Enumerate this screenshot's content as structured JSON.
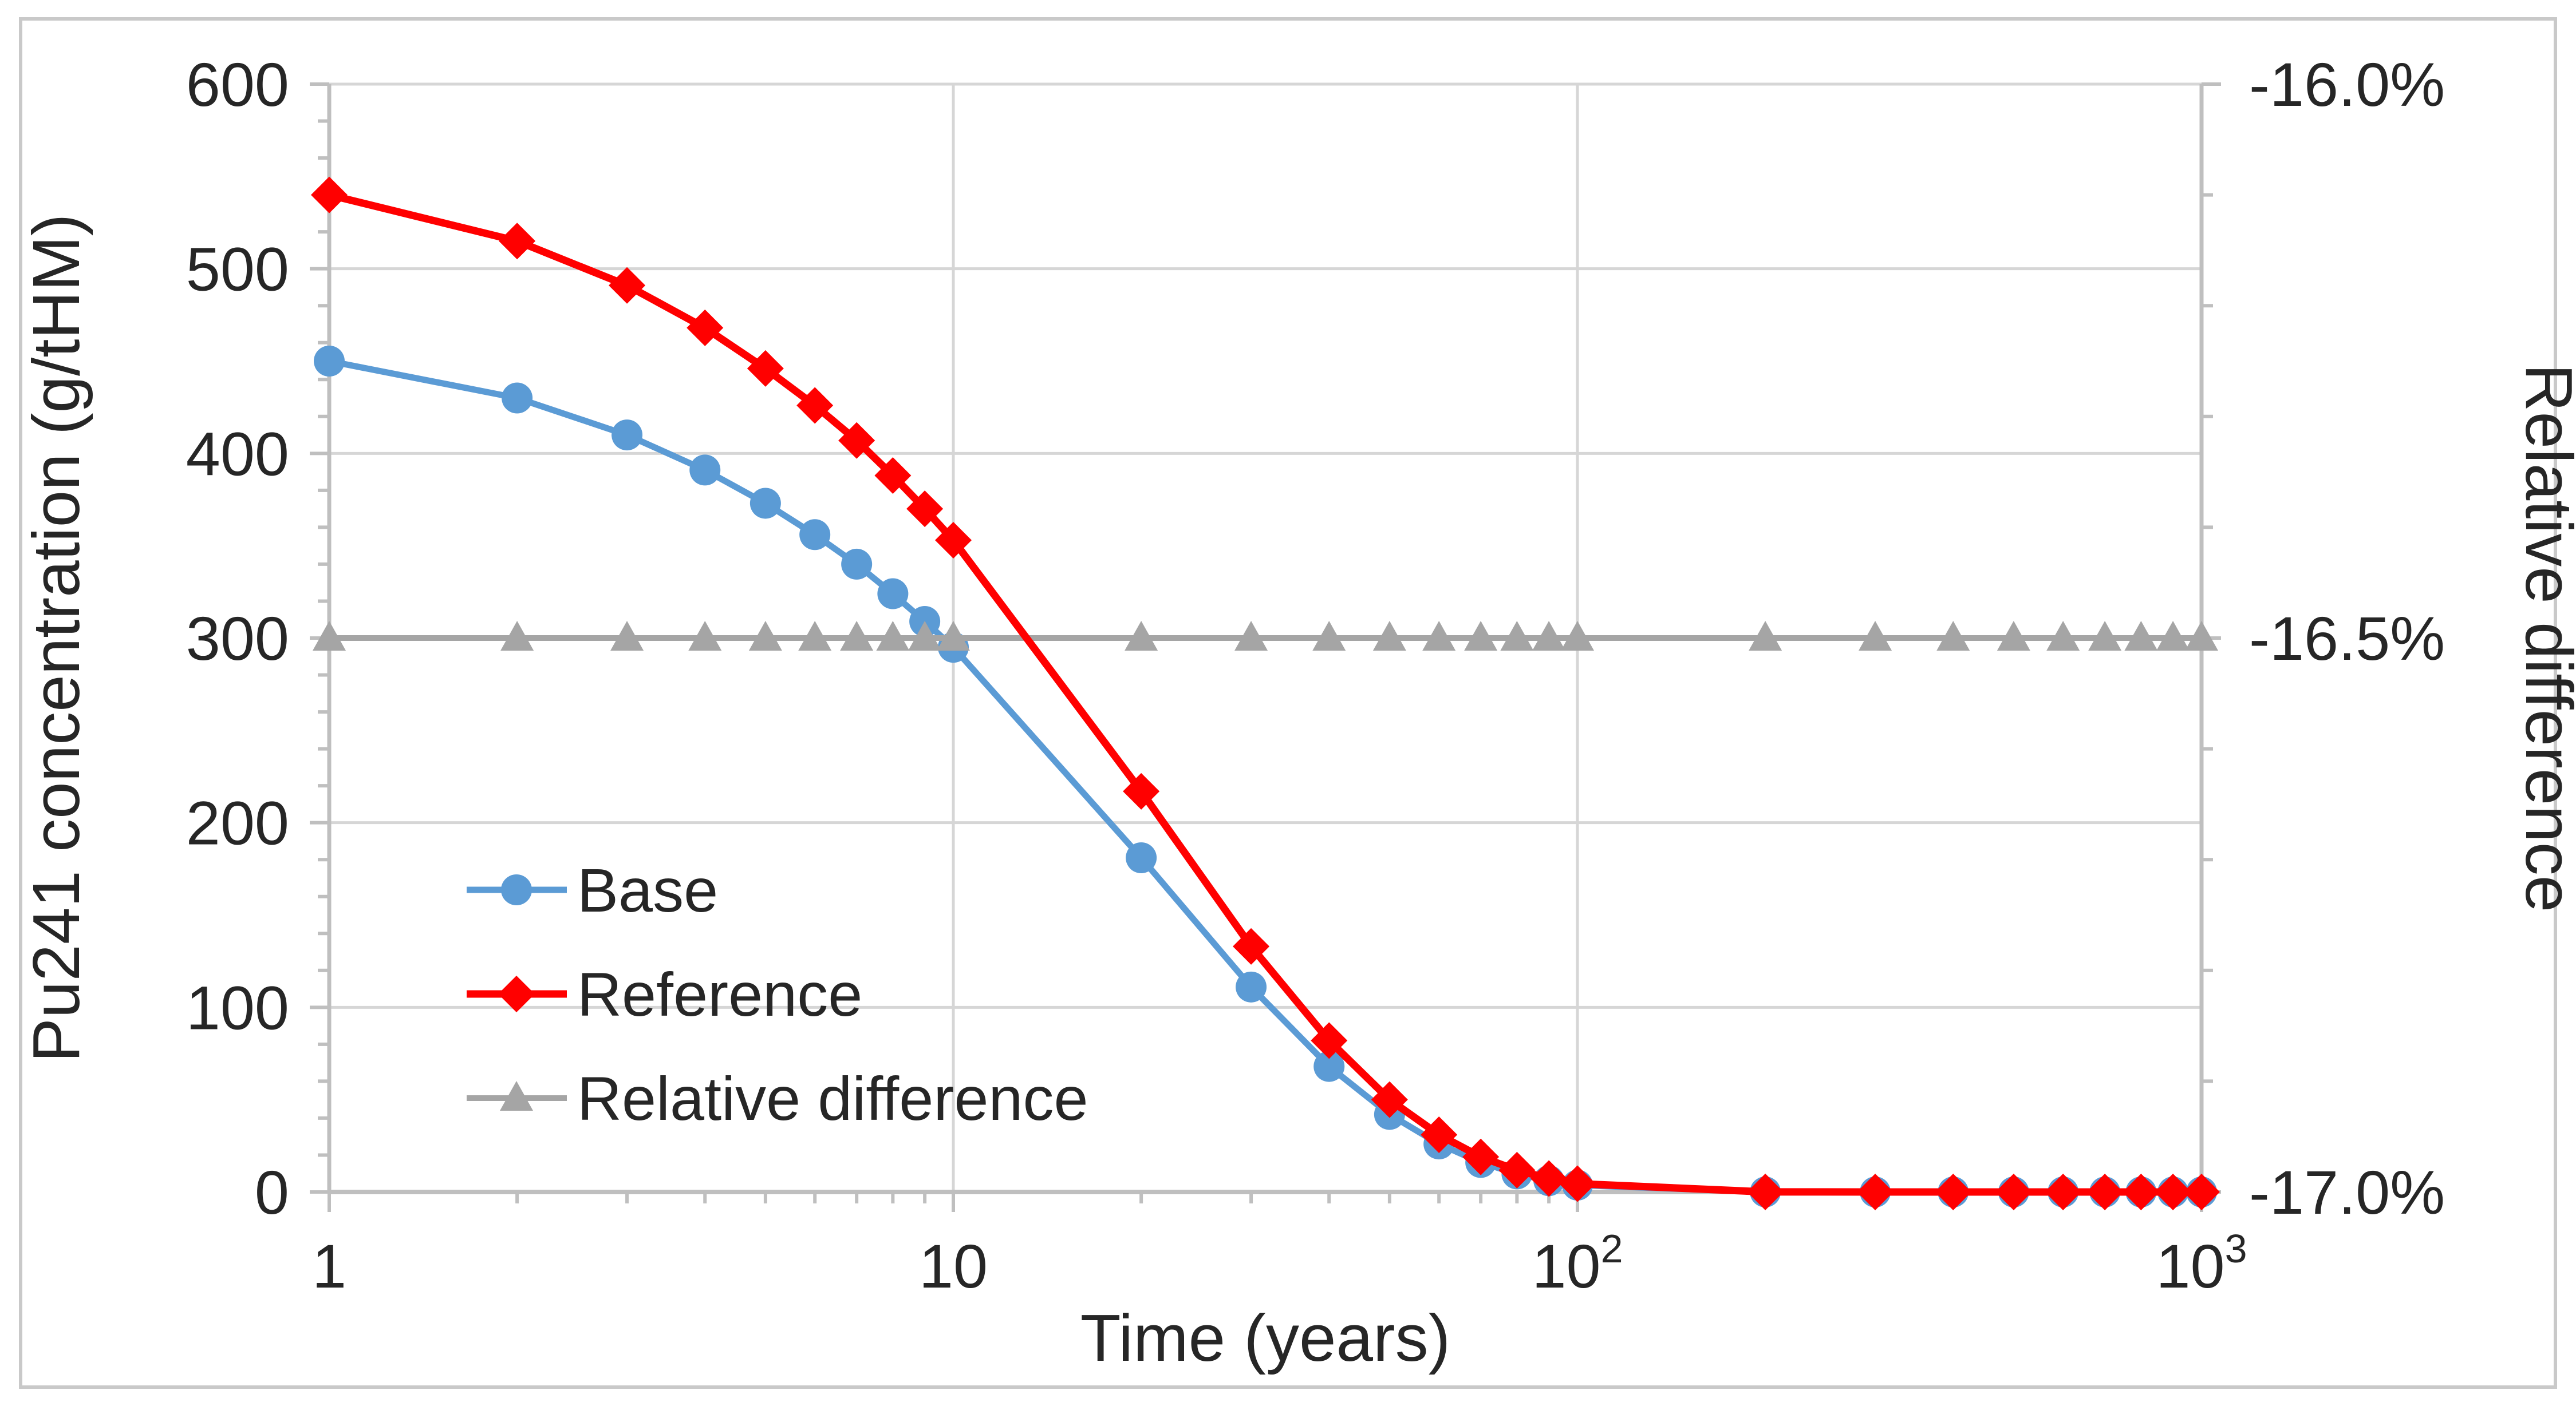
{
  "figure": {
    "background": "#FFFFFF",
    "border_color": "#C9C9C9"
  },
  "legend": {
    "position": "inside-left",
    "items": [
      {
        "label": "Base"
      },
      {
        "label": "Reference"
      },
      {
        "label": "Relative difference"
      }
    ]
  },
  "chart_data": {
    "type": "line",
    "title": "",
    "x_axis": {
      "title": "Time (years)",
      "scale": "log",
      "min": 1,
      "max": 1000,
      "tick_labels": [
        "1",
        "10",
        "10^2",
        "10^3"
      ],
      "tick_values": [
        1,
        10,
        100,
        1000
      ]
    },
    "left_axis": {
      "title": "Pu241 concentration (g/tHM)",
      "min": 0,
      "max": 600,
      "major_unit": 100,
      "minor_unit": 20,
      "tick_labels": [
        "600",
        "500",
        "400",
        "300",
        "200",
        "100",
        "0"
      ],
      "tick_values": [
        600,
        500,
        400,
        300,
        200,
        100,
        0
      ]
    },
    "right_axis": {
      "title": "Relative difference",
      "min": -17.0,
      "max": -16.0,
      "major_unit": 0.5,
      "minor_unit": 0.1,
      "tick_labels": [
        "-16.0%",
        "-16.5%",
        "-17.0%"
      ],
      "tick_values": [
        -16.0,
        -16.5,
        -17.0
      ]
    },
    "grid": "major",
    "x": [
      1,
      2,
      3,
      4,
      5,
      6,
      7,
      8,
      9,
      10,
      20,
      30,
      40,
      50,
      60,
      70,
      80,
      90,
      100,
      200,
      300,
      400,
      500,
      600,
      700,
      800,
      900,
      1000
    ],
    "series": [
      {
        "name": "Base",
        "axis": "left",
        "color": "#5B9BD5",
        "marker": "circle",
        "line_width": 11,
        "values": [
          450,
          430,
          410,
          391,
          373,
          356,
          340,
          324,
          309,
          295,
          181,
          111,
          68,
          42,
          26,
          16,
          9.8,
          6.1,
          3.7,
          0.03,
          0,
          0,
          0,
          0,
          0,
          0,
          0,
          0
        ]
      },
      {
        "name": "Reference",
        "axis": "left",
        "color": "#FF0000",
        "marker": "diamond",
        "line_width": 13,
        "values": [
          540,
          515,
          491,
          468,
          446,
          426,
          407,
          388,
          370,
          353,
          217,
          133,
          82,
          50,
          31,
          19,
          11.8,
          7.3,
          4.5,
          0.04,
          0,
          0,
          0,
          0,
          0,
          0,
          0,
          0
        ]
      },
      {
        "name": "Relative difference",
        "axis": "right",
        "color": "#A5A5A5",
        "marker": "triangle",
        "line_width": 10,
        "values": [
          -16.5,
          -16.5,
          -16.5,
          -16.5,
          -16.5,
          -16.5,
          -16.5,
          -16.5,
          -16.5,
          -16.5,
          -16.5,
          -16.5,
          -16.5,
          -16.5,
          -16.5,
          -16.5,
          -16.5,
          -16.5,
          -16.5,
          -16.5,
          -16.5,
          -16.5,
          -16.5,
          -16.5,
          -16.5,
          -16.5,
          -16.5,
          -16.5
        ]
      }
    ],
    "colors": {
      "grid": "#D6D6D6",
      "axis": "#BFBFBF",
      "text": "#262626"
    }
  }
}
